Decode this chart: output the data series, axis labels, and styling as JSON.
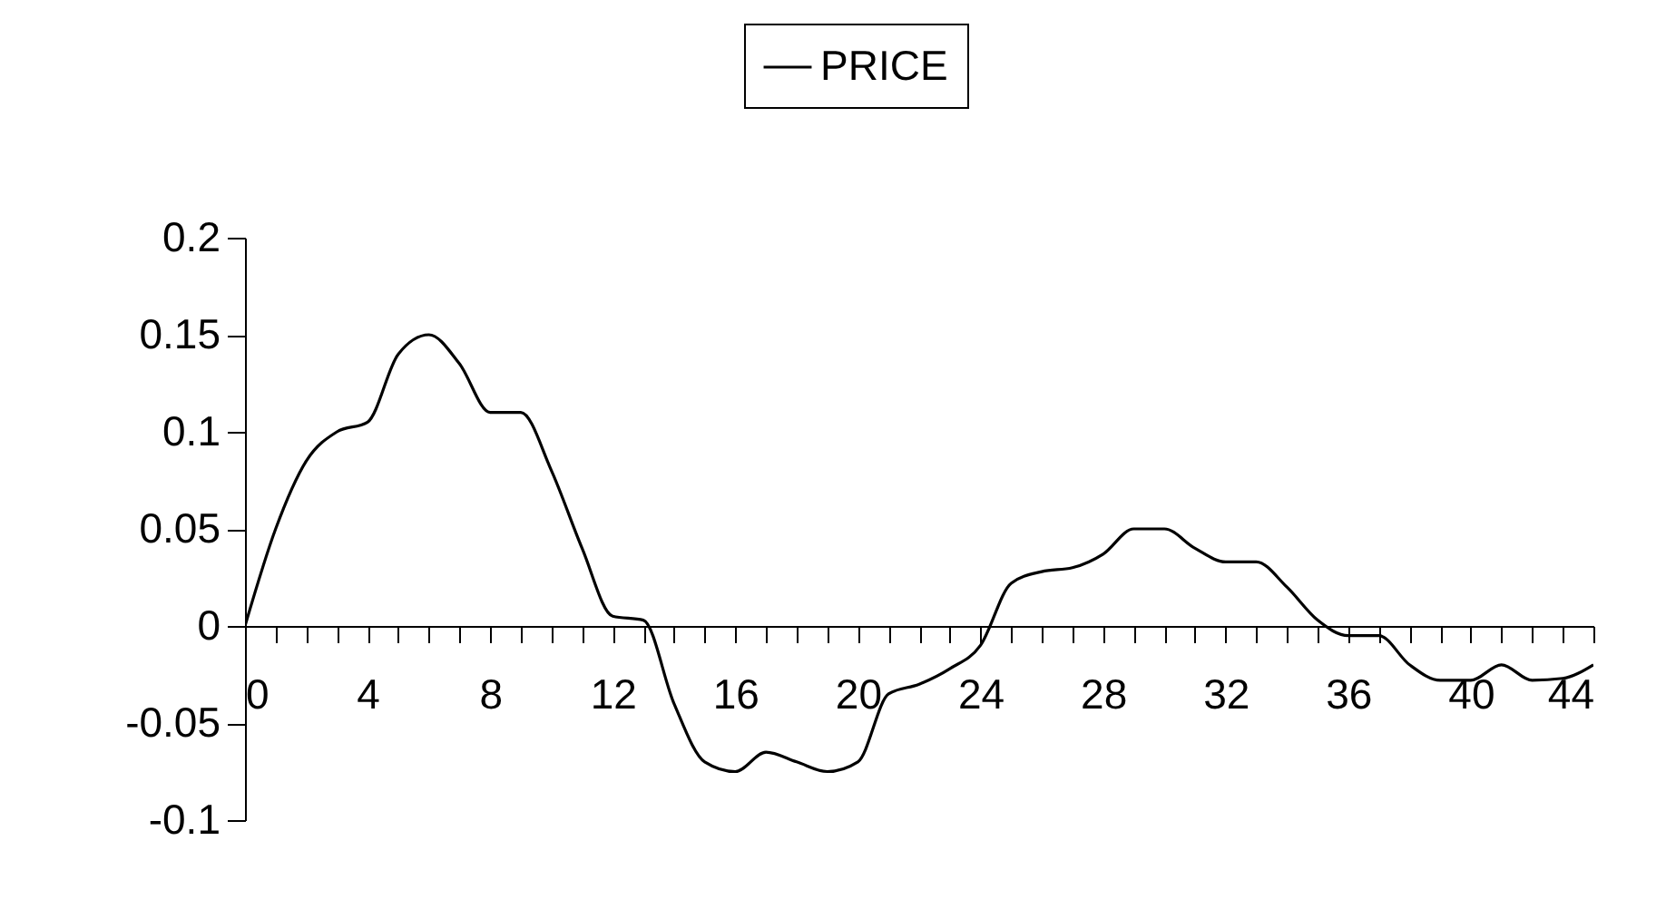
{
  "chart_data": {
    "type": "line",
    "x": [
      0,
      1,
      2,
      3,
      4,
      5,
      6,
      7,
      8,
      9,
      10,
      11,
      12,
      13,
      14,
      15,
      16,
      17,
      18,
      19,
      20,
      21,
      22,
      23,
      24,
      25,
      26,
      27,
      28,
      29,
      30,
      31,
      32,
      33,
      34,
      35,
      36,
      37,
      38,
      39,
      40,
      41,
      42,
      43,
      44
    ],
    "series": [
      {
        "name": "PRICE",
        "color": "#000000",
        "values": [
          0,
          0.05,
          0.085,
          0.1,
          0.105,
          0.14,
          0.15,
          0.135,
          0.11,
          0.11,
          0.08,
          0.04,
          0.005,
          0.003,
          -0.04,
          -0.07,
          -0.075,
          -0.065,
          -0.07,
          -0.075,
          -0.07,
          -0.035,
          -0.03,
          -0.022,
          -0.01,
          0.022,
          0.028,
          0.03,
          0.037,
          0.05,
          0.05,
          0.04,
          0.033,
          0.033,
          0.02,
          0.003,
          -0.005,
          -0.005,
          -0.02,
          -0.028,
          -0.028,
          -0.02,
          -0.028,
          -0.027,
          -0.02
        ]
      }
    ],
    "xlim": [
      0,
      44
    ],
    "xticks": [
      0,
      {
        "value": 1,
        "label": null
      },
      {
        "value": 2,
        "label": null
      },
      {
        "value": 3,
        "label": null
      },
      4,
      {
        "value": 5,
        "label": null
      },
      {
        "value": 6,
        "label": null
      },
      {
        "value": 7,
        "label": null
      },
      8,
      {
        "value": 9,
        "label": null
      },
      {
        "value": 10,
        "label": null
      },
      {
        "value": 11,
        "label": null
      },
      12,
      {
        "value": 13,
        "label": null
      },
      {
        "value": 14,
        "label": null
      },
      {
        "value": 15,
        "label": null
      },
      16,
      {
        "value": 17,
        "label": null
      },
      {
        "value": 18,
        "label": null
      },
      {
        "value": 19,
        "label": null
      },
      20,
      {
        "value": 21,
        "label": null
      },
      {
        "value": 22,
        "label": null
      },
      {
        "value": 23,
        "label": null
      },
      24,
      {
        "value": 25,
        "label": null
      },
      {
        "value": 26,
        "label": null
      },
      {
        "value": 27,
        "label": null
      },
      28,
      {
        "value": 29,
        "label": null
      },
      {
        "value": 30,
        "label": null
      },
      {
        "value": 31,
        "label": null
      },
      32,
      {
        "value": 33,
        "label": null
      },
      {
        "value": 34,
        "label": null
      },
      {
        "value": 35,
        "label": null
      },
      36,
      {
        "value": 37,
        "label": null
      },
      {
        "value": 38,
        "label": null
      },
      {
        "value": 39,
        "label": null
      },
      40,
      {
        "value": 41,
        "label": null
      },
      {
        "value": 42,
        "label": null
      },
      {
        "value": 43,
        "label": null
      },
      44
    ],
    "ylim": [
      -0.1,
      0.2
    ],
    "yticks": [
      -0.1,
      -0.05,
      0,
      0.05,
      0.1,
      0.15,
      0.2
    ],
    "grid": false,
    "legend": "top",
    "line_style": "solid",
    "marker": "none"
  }
}
